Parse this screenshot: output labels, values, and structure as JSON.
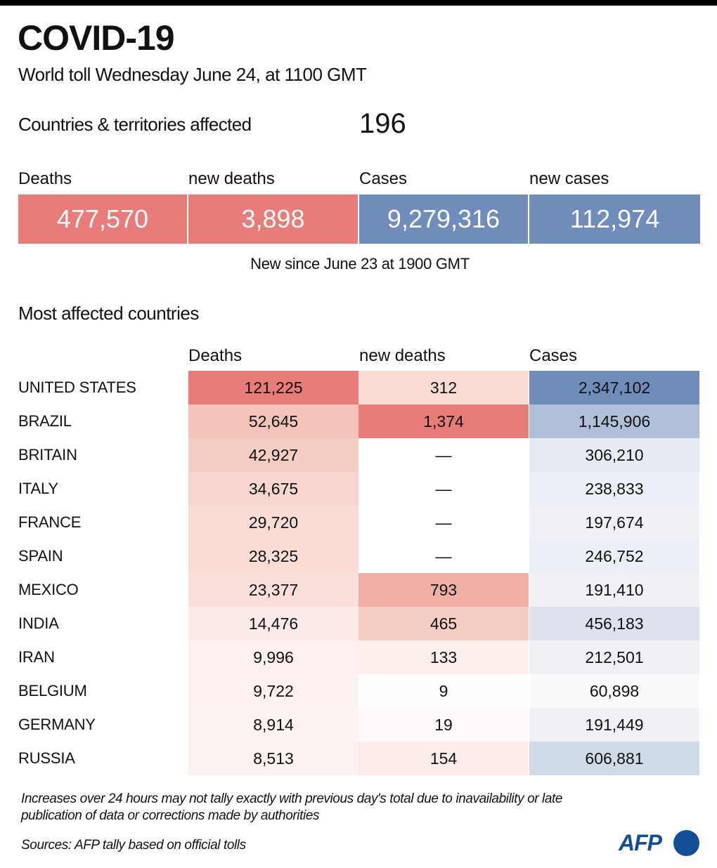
{
  "header": {
    "title": "COVID-19",
    "subtitle": "World toll Wednesday June 24, at 1100 GMT"
  },
  "affected": {
    "label": "Countries & territories affected",
    "value": "196"
  },
  "summary": {
    "items": [
      {
        "label": "Deaths",
        "value": "477,570",
        "color": "#e77c78"
      },
      {
        "label": "new deaths",
        "value": "3,898",
        "color": "#e77c78"
      },
      {
        "label": "Cases",
        "value": "9,279,316",
        "color": "#6f8cbb"
      },
      {
        "label": "new cases",
        "value": "112,974",
        "color": "#6f8cbb"
      }
    ],
    "note": "New since  June 23 at 1900 GMT"
  },
  "table": {
    "title": "Most affected countries",
    "columns": [
      "Deaths",
      "new deaths",
      "Cases"
    ]
  },
  "chart_data": {
    "type": "table",
    "title": "Most affected countries",
    "columns": [
      "Country",
      "Deaths",
      "new deaths",
      "Cases"
    ],
    "rows": [
      {
        "country": "UNITED STATES",
        "deaths": "121,225",
        "new_deaths": "312",
        "cases": "2,347,102",
        "deaths_color": "#e77c78",
        "new_deaths_color": "#f8dcd4",
        "cases_color": "#6f8cbb"
      },
      {
        "country": "BRAZIL",
        "deaths": "52,645",
        "new_deaths": "1,374",
        "cases": "1,145,906",
        "deaths_color": "#f2c4b9",
        "new_deaths_color": "#e77c78",
        "cases_color": "#b1bfd9"
      },
      {
        "country": "BRITAIN",
        "deaths": "42,927",
        "new_deaths": "—",
        "cases": "306,210",
        "deaths_color": "#f4cdc3",
        "new_deaths_color": "#ffffff",
        "cases_color": "#e6eaf2"
      },
      {
        "country": "ITALY",
        "deaths": "34,675",
        "new_deaths": "—",
        "cases": "238,833",
        "deaths_color": "#f6d6ce",
        "new_deaths_color": "#ffffff",
        "cases_color": "#eceef5"
      },
      {
        "country": "FRANCE",
        "deaths": "29,720",
        "new_deaths": "—",
        "cases": "197,674",
        "deaths_color": "#f8dcd5",
        "new_deaths_color": "#ffffff",
        "cases_color": "#eff1f6"
      },
      {
        "country": "SPAIN",
        "deaths": "28,325",
        "new_deaths": "—",
        "cases": "246,752",
        "deaths_color": "#f8dcd5",
        "new_deaths_color": "#ffffff",
        "cases_color": "#eceef5"
      },
      {
        "country": "MEXICO",
        "deaths": "23,377",
        "new_deaths": "793",
        "cases": "191,410",
        "deaths_color": "#f9e0da",
        "new_deaths_color": "#efafa5",
        "cases_color": "#eff1f6"
      },
      {
        "country": "INDIA",
        "deaths": "14,476",
        "new_deaths": "465",
        "cases": "456,183",
        "deaths_color": "#fbebe7",
        "new_deaths_color": "#f4cdc3",
        "cases_color": "#dde2ec"
      },
      {
        "country": "IRAN",
        "deaths": "9,996",
        "new_deaths": "133",
        "cases": "212,501",
        "deaths_color": "#fcf1ee",
        "new_deaths_color": "#fcf0ec",
        "cases_color": "#eef0f6"
      },
      {
        "country": "BELGIUM",
        "deaths": "9,722",
        "new_deaths": "9",
        "cases": "60,898",
        "deaths_color": "#fcf1ee",
        "new_deaths_color": "#fffcfc",
        "cases_color": "#f9fafc"
      },
      {
        "country": "GERMANY",
        "deaths": "8,914",
        "new_deaths": "19",
        "cases": "191,449",
        "deaths_color": "#fcf2ef",
        "new_deaths_color": "#fffafa",
        "cases_color": "#eff1f6"
      },
      {
        "country": "RUSSIA",
        "deaths": "8,513",
        "new_deaths": "154",
        "cases": "606,881",
        "deaths_color": "#fcf2ef",
        "new_deaths_color": "#fcece9",
        "cases_color": "#d1dae7"
      }
    ]
  },
  "footer": {
    "note": "Increases over 24 hours may not tally exactly with previous day's total due to inavailability or late publication of data or corrections made by authorities",
    "sources": "Sources: AFP tally based on official tolls",
    "logo": "AFP"
  }
}
